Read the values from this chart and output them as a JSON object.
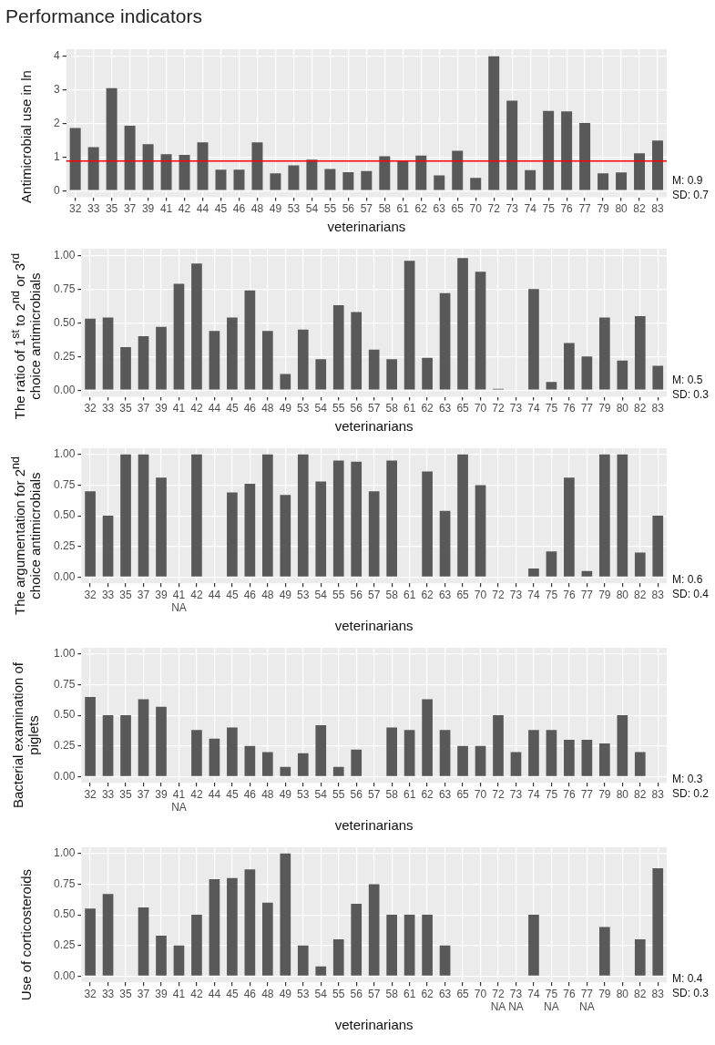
{
  "chart_data": [
    {
      "type": "bar",
      "title": "Performance indicators",
      "ylabel": "Antimicrobial use in ln",
      "xlabel": "veterinarians",
      "categories": [
        "32",
        "33",
        "35",
        "37",
        "39",
        "41",
        "42",
        "44",
        "45",
        "46",
        "48",
        "49",
        "53",
        "54",
        "55",
        "56",
        "57",
        "58",
        "61",
        "62",
        "63",
        "65",
        "70",
        "72",
        "73",
        "74",
        "75",
        "76",
        "77",
        "79",
        "80",
        "82",
        "83"
      ],
      "values": [
        1.86,
        1.29,
        3.04,
        1.93,
        1.38,
        1.08,
        1.06,
        1.43,
        0.62,
        0.62,
        1.43,
        0.51,
        0.75,
        0.92,
        0.64,
        0.55,
        0.58,
        1.02,
        0.88,
        1.04,
        0.45,
        1.18,
        0.38,
        3.99,
        2.67,
        0.61,
        2.37,
        2.35,
        2.01,
        0.51,
        0.54,
        1.11,
        1.49
      ],
      "color": "#595959",
      "ylim": [
        -0.2,
        4.2
      ],
      "yticks": [
        0,
        1,
        2,
        3,
        4
      ],
      "grid": true,
      "ref_lines": [
        {
          "axis": "y",
          "value": 0.88,
          "color": "#ff0000"
        }
      ],
      "annotations": [
        "M: 0.9",
        "SD: 0.7"
      ]
    },
    {
      "type": "bar",
      "ylabel": "The ratio of 1$^{st}$ to 2$^{nd}$ or 3$^{rd}$ choice antimicrobials",
      "xlabel": "veterinarians",
      "categories": [
        "32",
        "33",
        "35",
        "37",
        "39",
        "41",
        "42",
        "44",
        "45",
        "46",
        "48",
        "49",
        "53",
        "54",
        "55",
        "56",
        "57",
        "58",
        "61",
        "62",
        "63",
        "65",
        "70",
        "72",
        "73",
        "74",
        "75",
        "76",
        "77",
        "79",
        "80",
        "82",
        "83"
      ],
      "values": [
        0.53,
        0.54,
        0.32,
        0.4,
        0.47,
        0.79,
        0.94,
        0.44,
        0.54,
        0.74,
        0.44,
        0.12,
        0.45,
        0.23,
        0.63,
        0.58,
        0.3,
        0.23,
        0.96,
        0.24,
        0.72,
        0.98,
        0.88,
        0.01,
        0,
        0.75,
        0.06,
        0.35,
        0.25,
        0.54,
        0.22,
        0.55,
        0.18
      ],
      "color": "#595959",
      "ylim": [
        -0.05,
        1.05
      ],
      "yticks": [
        {
          "value": 0,
          "label": "0.00"
        },
        {
          "value": 0.25,
          "label": "0.25"
        },
        {
          "value": 0.5,
          "label": "0.50"
        },
        {
          "value": 0.75,
          "label": "0.75"
        },
        {
          "value": 1,
          "label": "1.00"
        }
      ],
      "grid": true,
      "annotations": [
        "M: 0.5",
        "SD: 0.3"
      ]
    },
    {
      "type": "bar",
      "ylabel": "The argumentation for 2$^{nd}$ choice antimicrobials",
      "xlabel": "veterinarians",
      "categories": [
        "32",
        "33",
        "35",
        "37",
        "39",
        "41\nNA",
        "42",
        "44",
        "45",
        "46",
        "48",
        "49",
        "53",
        "54",
        "55",
        "56",
        "57",
        "58",
        "61",
        "62",
        "63",
        "65",
        "70",
        "72",
        "73",
        "74",
        "75",
        "76",
        "77",
        "79",
        "80",
        "82",
        "83"
      ],
      "values": [
        0.7,
        0.5,
        1.0,
        1.0,
        0.81,
        null,
        1.0,
        0,
        0.69,
        0.76,
        1.0,
        0.67,
        1.0,
        0.78,
        0.95,
        0.94,
        0.7,
        0.95,
        0,
        0.86,
        0.54,
        1.0,
        0.75,
        0,
        0,
        0.07,
        0.21,
        0.81,
        0.05,
        1.0,
        1.0,
        0.2,
        0.5
      ],
      "color": "#595959",
      "ylim": [
        -0.05,
        1.05
      ],
      "yticks": [
        {
          "value": 0,
          "label": "0.00"
        },
        {
          "value": 0.25,
          "label": "0.25"
        },
        {
          "value": 0.5,
          "label": "0.50"
        },
        {
          "value": 0.75,
          "label": "0.75"
        },
        {
          "value": 1,
          "label": "1.00"
        }
      ],
      "grid": true,
      "annotations": [
        "M: 0.6",
        "SD: 0.4"
      ]
    },
    {
      "type": "bar",
      "ylabel": "Bacterial examination of piglets",
      "xlabel": "veterinarians",
      "categories": [
        "32",
        "33",
        "35",
        "37",
        "39",
        "41\nNA",
        "42",
        "44",
        "45",
        "46",
        "48",
        "49",
        "53",
        "54",
        "55",
        "56",
        "57",
        "58",
        "61",
        "62",
        "63",
        "65",
        "70",
        "72",
        "73",
        "74",
        "75",
        "76",
        "77",
        "79",
        "80",
        "82",
        "83"
      ],
      "values": [
        0.65,
        0.5,
        0.5,
        0.63,
        0.57,
        null,
        0.38,
        0.31,
        0.4,
        0.25,
        0.2,
        0.08,
        0.19,
        0.42,
        0.08,
        0.22,
        0,
        0.4,
        0.38,
        0.63,
        0.38,
        0.25,
        0.25,
        0.5,
        0.2,
        0.38,
        0.38,
        0.3,
        0.3,
        0.27,
        0.5,
        0.2,
        0
      ],
      "color": "#595959",
      "ylim": [
        -0.05,
        1.05
      ],
      "yticks": [
        {
          "value": 0,
          "label": "0.00"
        },
        {
          "value": 0.25,
          "label": "0.25"
        },
        {
          "value": 0.5,
          "label": "0.50"
        },
        {
          "value": 0.75,
          "label": "0.75"
        },
        {
          "value": 1,
          "label": "1.00"
        }
      ],
      "grid": true,
      "annotations": [
        "M: 0.3",
        "SD: 0.2"
      ]
    },
    {
      "type": "bar",
      "ylabel": "Use of corticosteroids",
      "xlabel": "veterinarians",
      "categories": [
        "32",
        "33",
        "35",
        "37",
        "39",
        "41",
        "42",
        "44",
        "45",
        "46",
        "48",
        "49",
        "53",
        "54",
        "55",
        "56",
        "57",
        "58",
        "61",
        "62",
        "63",
        "65",
        "70",
        "72\nNA",
        "73\nNA",
        "74",
        "75\nNA",
        "76",
        "77\nNA",
        "79",
        "80",
        "82",
        "83"
      ],
      "values": [
        0.55,
        0.67,
        0,
        0.56,
        0.33,
        0.25,
        0.5,
        0.79,
        0.8,
        0.87,
        0.6,
        1.0,
        0.25,
        0.08,
        0.3,
        0.59,
        0.75,
        0.5,
        0.5,
        0.5,
        0.25,
        0,
        0,
        null,
        null,
        0.5,
        null,
        0,
        null,
        0.4,
        0,
        0.3,
        0.88
      ],
      "color": "#595959",
      "ylim": [
        -0.05,
        1.05
      ],
      "yticks": [
        {
          "value": 0,
          "label": "0.00"
        },
        {
          "value": 0.25,
          "label": "0.25"
        },
        {
          "value": 0.5,
          "label": "0.50"
        },
        {
          "value": 0.75,
          "label": "0.75"
        },
        {
          "value": 1,
          "label": "1.00"
        }
      ],
      "grid": true,
      "annotations": [
        "M: 0.4",
        "SD: 0.3"
      ]
    }
  ]
}
